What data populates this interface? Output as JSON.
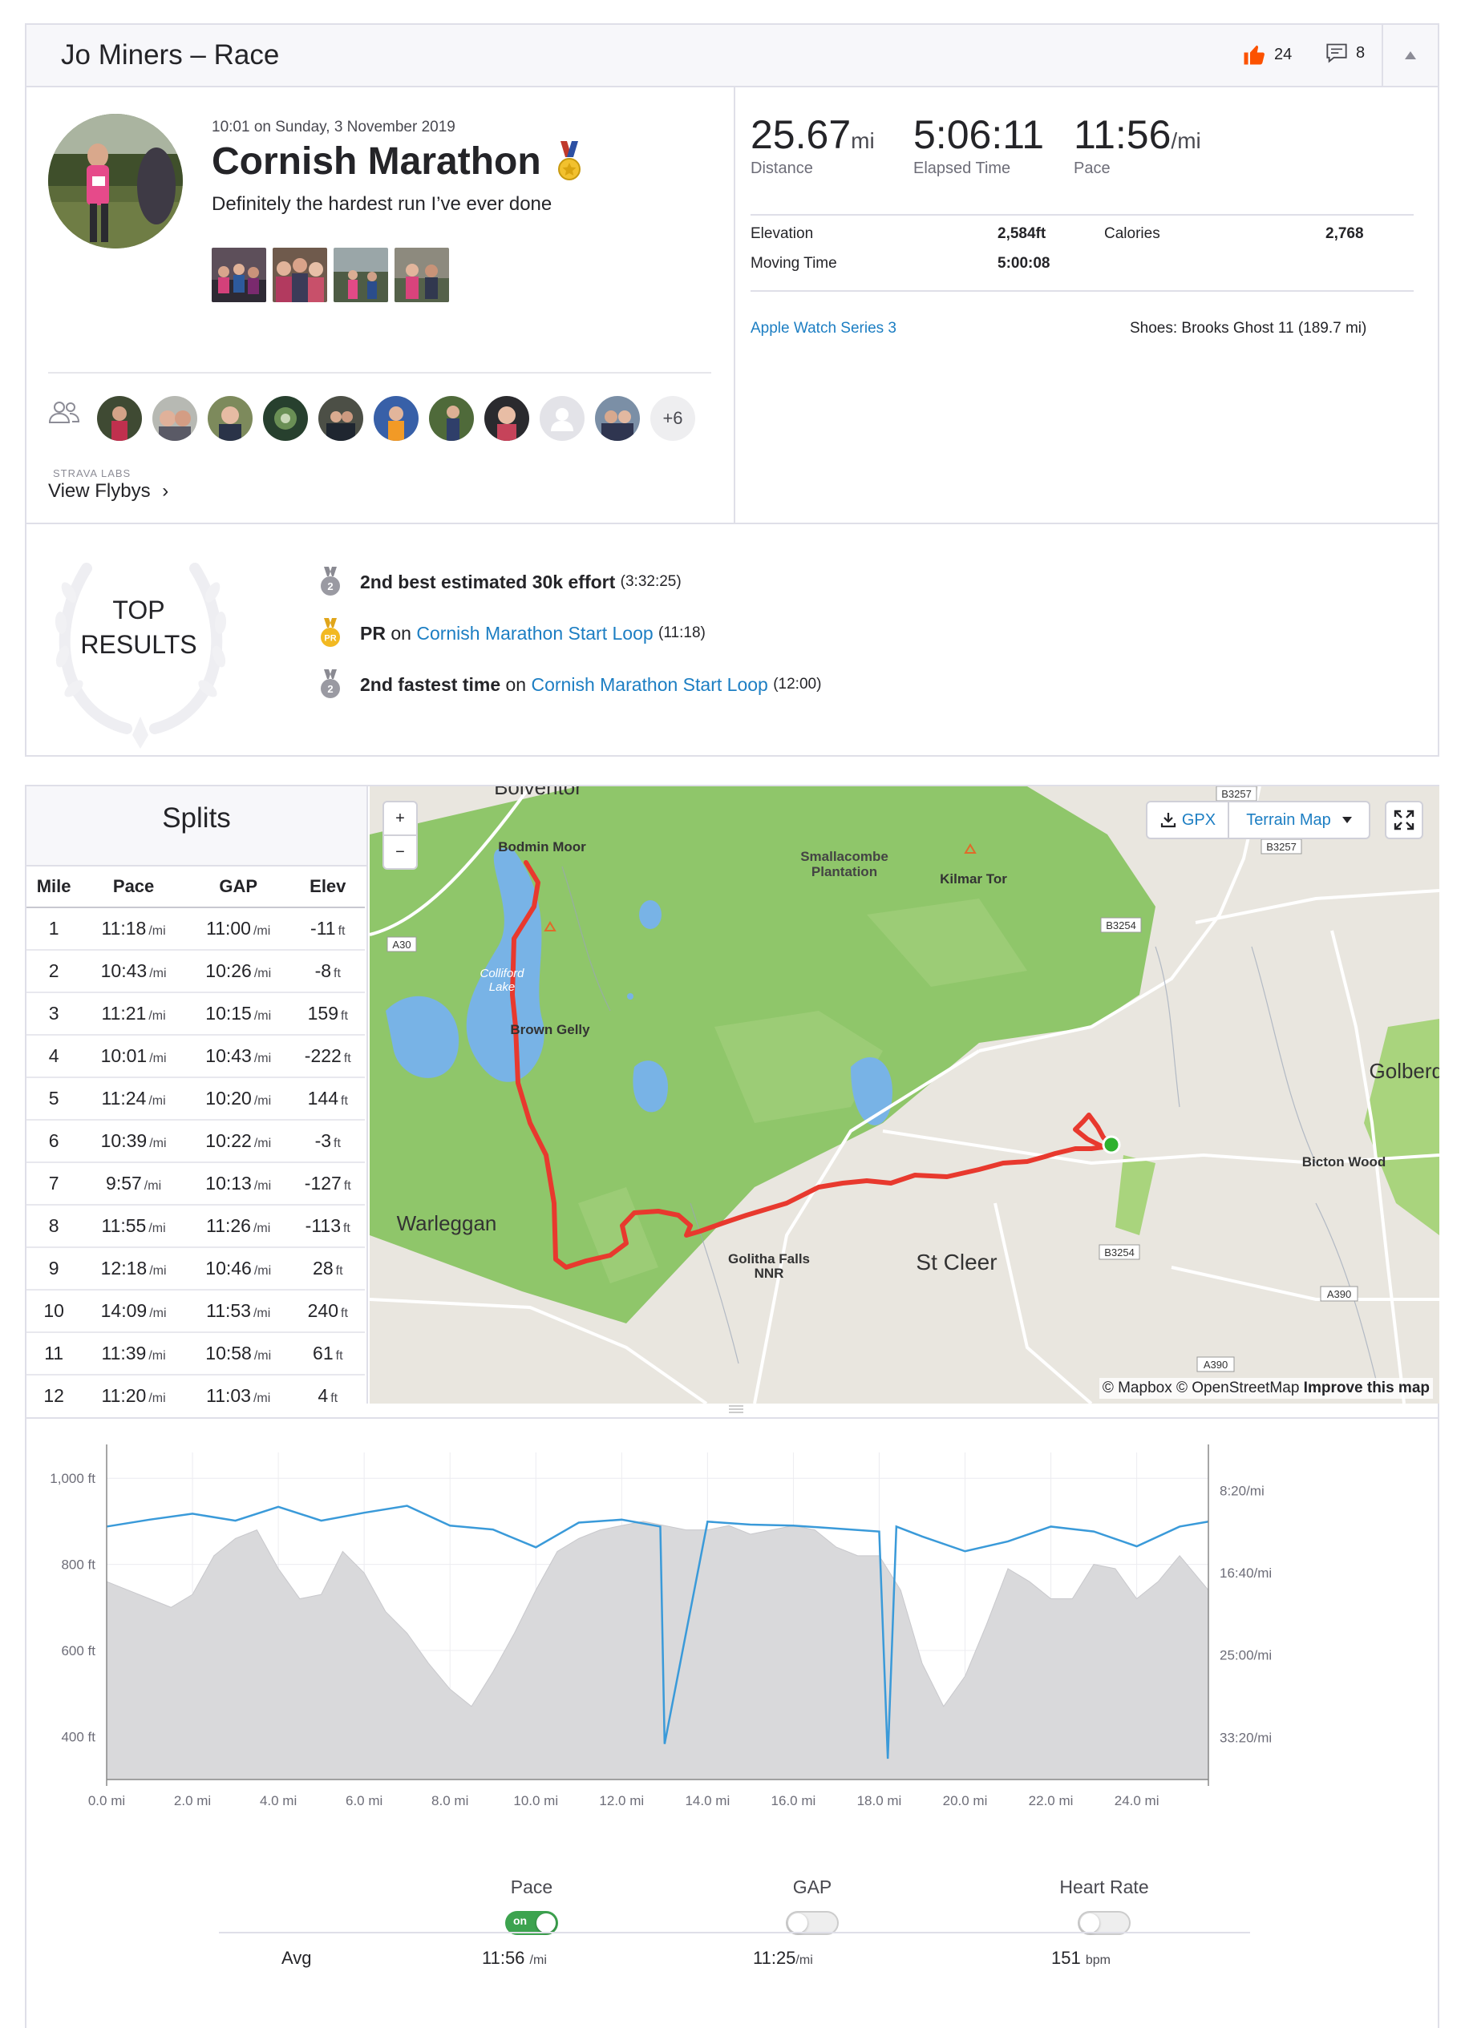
{
  "header": {
    "title": "Jo Miners – Race",
    "kudos_count": "24",
    "comment_count": "8"
  },
  "activity": {
    "datetime": "10:01 on Sunday, 3 November 2019",
    "name": "Cornish Marathon",
    "description": "Definitely the hardest run I’ve ever done",
    "athletes_more": "+6",
    "labs_label": "STRAVA LABS",
    "flybys_label": "View Flybys",
    "flybys_chevron": "›"
  },
  "stats": {
    "distance_value": "25.67",
    "distance_unit": "mi",
    "distance_label": "Distance",
    "elapsed_value": "5:06:11",
    "elapsed_label": "Elapsed Time",
    "pace_value": "11:56",
    "pace_unit": "/mi",
    "pace_label": "Pace",
    "elevation_label": "Elevation",
    "elevation_value": "2,584ft",
    "calories_label": "Calories",
    "calories_value": "2,768",
    "moving_label": "Moving Time",
    "moving_value": "5:00:08",
    "device": "Apple Watch Series 3",
    "shoes": "Shoes: Brooks Ghost 11 (189.7 mi)"
  },
  "top_results": {
    "label_line1": "TOP",
    "label_line2": "RESULTS",
    "items": [
      {
        "medal": "2",
        "bold": "2nd best estimated 30k effort",
        "on": "",
        "segment": "",
        "time": "(3:32:25)"
      },
      {
        "medal": "PR",
        "bold": "PR",
        "on": "on",
        "segment": "Cornish Marathon Start Loop",
        "time": "(11:18)"
      },
      {
        "medal": "2",
        "bold": "2nd fastest time",
        "on": "on",
        "segment": "Cornish Marathon Start Loop",
        "time": "(12:00)"
      }
    ]
  },
  "splits": {
    "title": "Splits",
    "columns": [
      "Mile",
      "Pace",
      "GAP",
      "Elev"
    ],
    "pace_unit": "/mi",
    "elev_unit": "ft",
    "rows": [
      [
        "1",
        "11:18",
        "11:00",
        "-11"
      ],
      [
        "2",
        "10:43",
        "10:26",
        "-8"
      ],
      [
        "3",
        "11:21",
        "10:15",
        "159"
      ],
      [
        "4",
        "10:01",
        "10:43",
        "-222"
      ],
      [
        "5",
        "11:24",
        "10:20",
        "144"
      ],
      [
        "6",
        "10:39",
        "10:22",
        "-3"
      ],
      [
        "7",
        "9:57",
        "10:13",
        "-127"
      ],
      [
        "8",
        "11:55",
        "11:26",
        "-113"
      ],
      [
        "9",
        "12:18",
        "10:46",
        "28"
      ],
      [
        "10",
        "14:09",
        "11:53",
        "240"
      ],
      [
        "11",
        "11:39",
        "10:58",
        "61"
      ],
      [
        "12",
        "11:20",
        "11:03",
        "4"
      ]
    ]
  },
  "map": {
    "zoom_in": "+",
    "zoom_out": "−",
    "gpx_label": "GPX",
    "terrain_label": "Terrain Map",
    "attribution_1": "© Mapbox © OpenStreetMap",
    "attribution_2": "Improve this map",
    "places": {
      "bolventor": "Bolventor",
      "bodmin_moor": "Bodmin Moor",
      "smallacombe_1": "Smallacombe",
      "smallacombe_2": "Plantation",
      "kilmar_tor": "Kilmar Tor",
      "colliford_1": "Colliford",
      "colliford_2": "Lake",
      "brown_gelly": "Brown Gelly",
      "golberdon": "Golberdo",
      "bicton_wood": "Bicton Wood",
      "warleggan": "Warleggan",
      "golitha_1": "Golitha Falls",
      "golitha_2": "NNR",
      "st_cleer": "St Cleer"
    },
    "roads": {
      "a30": "A30",
      "b3257_top": "B3257",
      "b3257_2": "B3257",
      "b3254_top": "B3254",
      "b3254_bottom": "B3254",
      "a390_right": "A390",
      "a390_bottom": "A390"
    },
    "colors": {
      "route": "#e8392e",
      "moor": "#8fc66a",
      "land": "#e9e6df",
      "water": "#78b3e6",
      "start": "#2fb12f"
    }
  },
  "chart_data": {
    "type": "area",
    "x_unit": "mi",
    "x_ticks": [
      "0.0 mi",
      "2.0 mi",
      "4.0 mi",
      "6.0 mi",
      "8.0 mi",
      "10.0 mi",
      "12.0 mi",
      "14.0 mi",
      "16.0 mi",
      "18.0 mi",
      "20.0 mi",
      "22.0 mi",
      "24.0 mi"
    ],
    "xlim": [
      0,
      25.67
    ],
    "y_left_ticks": [
      "1,000 ft",
      "800 ft",
      "600 ft",
      "400 ft"
    ],
    "y_left_lim": [
      300,
      1060
    ],
    "y_right_ticks": [
      "8:20/mi",
      "16:40/mi",
      "25:00/mi",
      "33:20/mi"
    ],
    "y_right_lim_min_per_mi": [
      4.5,
      37.6
    ],
    "elevation_series": {
      "name": "Elevation",
      "x": [
        0,
        0.5,
        1,
        1.5,
        2,
        2.5,
        3,
        3.5,
        4,
        4.5,
        5,
        5.5,
        6,
        6.5,
        7,
        7.5,
        8,
        8.5,
        9,
        9.5,
        10,
        10.5,
        11,
        11.5,
        12,
        12.5,
        13,
        13.5,
        14,
        14.5,
        15,
        15.5,
        16,
        16.5,
        17,
        17.5,
        18,
        18.5,
        19,
        19.5,
        20,
        20.5,
        21,
        21.5,
        22,
        22.5,
        23,
        23.5,
        24,
        24.5,
        25,
        25.67
      ],
      "y": [
        760,
        740,
        720,
        700,
        730,
        820,
        860,
        880,
        790,
        720,
        730,
        830,
        780,
        690,
        640,
        570,
        510,
        470,
        550,
        640,
        740,
        830,
        860,
        880,
        890,
        900,
        890,
        880,
        880,
        890,
        870,
        880,
        890,
        880,
        840,
        820,
        820,
        740,
        570,
        470,
        540,
        660,
        790,
        760,
        720,
        720,
        800,
        790,
        720,
        760,
        820,
        740
      ]
    },
    "pace_series": {
      "name": "Pace",
      "note": "minutes per mile",
      "x": [
        0,
        1,
        2,
        3,
        4,
        5,
        6,
        7,
        8,
        9,
        10,
        11,
        12,
        12.9,
        13,
        14,
        15,
        16,
        17,
        18,
        18.2,
        18.4,
        19,
        20,
        21,
        22,
        23,
        24,
        25,
        25.67
      ],
      "y": [
        12.0,
        11.3,
        10.7,
        11.4,
        10.0,
        11.4,
        10.6,
        9.9,
        11.9,
        12.3,
        14.1,
        11.6,
        11.3,
        12.0,
        34.0,
        11.5,
        11.8,
        11.9,
        12.2,
        12.5,
        35.5,
        12.0,
        13.0,
        14.5,
        13.5,
        12.0,
        12.5,
        14.0,
        12.0,
        11.5
      ]
    }
  },
  "chart_controls": {
    "pace_label": "Pace",
    "gap_label": "GAP",
    "hr_label": "Heart Rate",
    "toggle_on_text": "on",
    "avg_label": "Avg",
    "avg_pace": "11:56",
    "avg_pace_unit": "/mi",
    "avg_gap": "11:25",
    "avg_gap_unit": "/mi",
    "avg_hr": "151",
    "avg_hr_unit": "bpm"
  }
}
